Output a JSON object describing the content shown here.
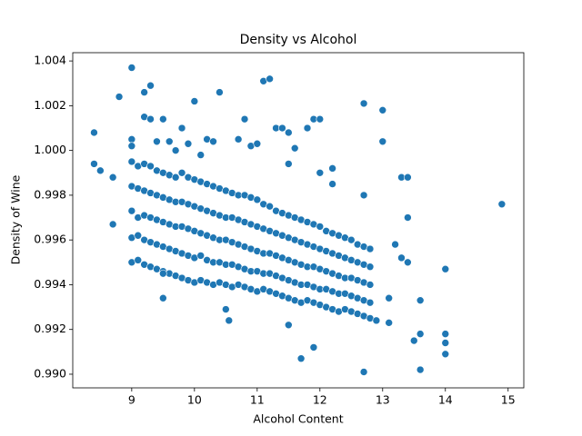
{
  "chart_data": {
    "type": "scatter",
    "title": "Density vs Alcohol",
    "x_label": "Alcohol Content",
    "y_label": "Density of Wine",
    "color": "#1f77b4",
    "xlim": [
      8.06,
      15.25
    ],
    "ylim": [
      0.98939,
      1.00437
    ],
    "xticks": [
      9,
      10,
      11,
      12,
      13,
      14,
      15
    ],
    "yticks": [
      {
        "value": 0.99,
        "label": "0.990"
      },
      0.992,
      0.994,
      0.996,
      0.998,
      {
        "value": 1.0,
        "label": "1.000"
      },
      1.002,
      1.004
    ],
    "x": [
      9,
      9,
      9,
      9,
      9,
      9.1,
      9.1,
      9.1,
      9.1,
      9.1,
      9.2,
      9.2,
      9.2,
      9.2,
      9.2,
      9.3,
      9.3,
      9.3,
      9.3,
      9.3,
      9.4,
      9.4,
      9.4,
      9.4,
      9.4,
      9.5,
      9.5,
      9.5,
      9.5,
      9.5,
      9.6,
      9.6,
      9.6,
      9.6,
      9.6,
      9.7,
      9.7,
      9.7,
      9.7,
      9.7,
      9.8,
      9.8,
      9.8,
      9.8,
      9.8,
      9.9,
      9.9,
      9.9,
      9.9,
      9.9,
      10,
      10,
      10,
      10,
      10,
      10.1,
      10.1,
      10.1,
      10.1,
      10.1,
      10.2,
      10.2,
      10.2,
      10.2,
      10.2,
      10.3,
      10.3,
      10.3,
      10.3,
      10.3,
      10.4,
      10.4,
      10.4,
      10.4,
      10.4,
      10.5,
      10.5,
      10.5,
      10.5,
      10.5,
      10.6,
      10.6,
      10.6,
      10.6,
      10.6,
      10.7,
      10.7,
      10.7,
      10.7,
      10.7,
      10.8,
      10.8,
      10.8,
      10.8,
      10.8,
      10.9,
      10.9,
      10.9,
      10.9,
      10.9,
      11,
      11,
      11,
      11,
      11,
      11.1,
      11.1,
      11.1,
      11.1,
      11.1,
      11.2,
      11.2,
      11.2,
      11.2,
      11.2,
      11.3,
      11.3,
      11.3,
      11.3,
      11.3,
      11.4,
      11.4,
      11.4,
      11.4,
      11.4,
      11.5,
      11.5,
      11.5,
      11.5,
      11.5,
      11.6,
      11.6,
      11.6,
      11.6,
      11.6,
      11.7,
      11.7,
      11.7,
      11.7,
      11.7,
      11.8,
      11.8,
      11.8,
      11.8,
      11.8,
      11.9,
      11.9,
      11.9,
      11.9,
      11.9,
      12,
      12,
      12,
      12,
      12,
      12.1,
      12.1,
      12.1,
      12.1,
      12.1,
      12.2,
      12.2,
      12.2,
      12.2,
      12.2,
      12.3,
      12.3,
      12.3,
      12.3,
      12.3,
      12.4,
      12.4,
      12.4,
      12.4,
      12.4,
      12.5,
      12.5,
      12.5,
      12.5,
      12.5,
      12.6,
      12.6,
      12.6,
      12.6,
      12.6,
      12.7,
      12.7,
      12.7,
      12.7,
      12.7,
      12.8,
      12.8,
      12.8,
      12.8,
      12.8,
      8.4,
      8.4,
      8.5,
      8.7,
      8.7,
      8.8,
      9.0,
      9.2,
      9.3,
      9.5,
      9.5,
      10.0,
      10.4,
      10.5,
      10.55,
      11.1,
      11.2,
      11.7,
      11.9,
      11.5,
      12.7,
      12.7,
      13.0,
      13.0,
      13.6,
      14.0,
      14.0,
      14.9,
      13.6,
      13.5,
      13.6,
      14.0,
      14.0,
      13.3,
      13.4,
      13.4,
      13.2,
      13.3,
      13.4,
      12.9,
      13.1,
      13.1,
      11.8,
      11.9,
      12.0,
      11.3,
      11.4,
      10.8,
      9.8,
      9.5,
      9.2,
      9.3,
      12.2,
      12.7,
      12.0,
      12.2,
      11.5,
      11.5,
      9.0,
      9.0,
      9.4,
      9.6,
      9.9,
      10.2,
      10.3,
      10.7,
      10.9,
      11.0,
      11.6,
      10.1,
      9.7
    ],
    "values": [
      0.995,
      0.9961,
      0.9973,
      0.9984,
      0.9995,
      0.9951,
      0.9962,
      0.997,
      0.9983,
      0.9993,
      0.9949,
      0.996,
      0.9971,
      0.9982,
      0.9994,
      0.9948,
      0.9959,
      0.997,
      0.9981,
      0.9993,
      0.9947,
      0.9958,
      0.9969,
      0.998,
      0.9991,
      0.9946,
      0.9957,
      0.9968,
      0.9979,
      0.999,
      0.9945,
      0.9956,
      0.9967,
      0.9978,
      0.9989,
      0.9944,
      0.9955,
      0.9966,
      0.9977,
      0.9988,
      0.9943,
      0.9954,
      0.9966,
      0.9977,
      0.999,
      0.9942,
      0.9953,
      0.9965,
      0.9976,
      0.9988,
      0.9941,
      0.9952,
      0.9964,
      0.9975,
      0.9987,
      0.9942,
      0.9953,
      0.9963,
      0.9974,
      0.9986,
      0.9941,
      0.9951,
      0.9962,
      0.9973,
      0.9985,
      0.994,
      0.995,
      0.9961,
      0.9972,
      0.9984,
      0.9941,
      0.995,
      0.996,
      0.9971,
      0.9983,
      0.994,
      0.9949,
      0.996,
      0.997,
      0.9982,
      0.9939,
      0.9949,
      0.9959,
      0.997,
      0.9981,
      0.994,
      0.9948,
      0.9958,
      0.9969,
      0.998,
      0.9939,
      0.9947,
      0.9957,
      0.9968,
      0.998,
      0.9938,
      0.9946,
      0.9956,
      0.9967,
      0.9979,
      0.9937,
      0.9946,
      0.9955,
      0.9966,
      0.9978,
      0.9938,
      0.9945,
      0.9954,
      0.9965,
      0.9976,
      0.9937,
      0.9945,
      0.9954,
      0.9964,
      0.9975,
      0.9936,
      0.9944,
      0.9953,
      0.9963,
      0.9973,
      0.9935,
      0.9943,
      0.9952,
      0.9962,
      0.9972,
      0.9934,
      0.9942,
      0.9951,
      0.9961,
      0.9971,
      0.9933,
      0.9941,
      0.995,
      0.996,
      0.997,
      0.9932,
      0.994,
      0.9949,
      0.9959,
      0.9969,
      0.9933,
      0.994,
      0.9948,
      0.9958,
      0.9968,
      0.9932,
      0.9939,
      0.9948,
      0.9957,
      0.9967,
      0.9931,
      0.9938,
      0.9947,
      0.9956,
      0.9966,
      0.993,
      0.9938,
      0.9946,
      0.9955,
      0.9964,
      0.9929,
      0.9937,
      0.9945,
      0.9954,
      0.9963,
      0.9928,
      0.9936,
      0.9944,
      0.9953,
      0.9962,
      0.9929,
      0.9936,
      0.9943,
      0.9952,
      0.9961,
      0.9928,
      0.9935,
      0.9943,
      0.9951,
      0.996,
      0.9927,
      0.9934,
      0.9942,
      0.995,
      0.9958,
      0.9926,
      0.9933,
      0.9941,
      0.9949,
      0.9957,
      0.9925,
      0.9932,
      0.994,
      0.9948,
      0.9956,
      1.0008,
      0.9994,
      0.9991,
      0.9988,
      0.9967,
      1.0024,
      1.0037,
      1.0026,
      1.0029,
      0.9934,
      0.9945,
      1.0022,
      1.0026,
      0.9929,
      0.9924,
      1.0031,
      1.0032,
      0.9907,
      0.9912,
      0.9922,
      0.9901,
      1.0021,
      1.0018,
      1.0004,
      0.9902,
      0.9909,
      0.9947,
      0.9976,
      0.9933,
      0.9915,
      0.9918,
      0.9918,
      0.9914,
      0.9988,
      0.9988,
      0.997,
      0.9958,
      0.9952,
      0.995,
      0.9924,
      0.9923,
      0.9934,
      1.001,
      1.0014,
      1.0014,
      1.001,
      1.001,
      1.0014,
      1.001,
      1.0014,
      1.0015,
      1.0014,
      0.9985,
      0.998,
      0.999,
      0.9992,
      0.9994,
      1.0008,
      1.0005,
      1.0002,
      1.0004,
      1.0004,
      1.0003,
      1.0005,
      1.0004,
      1.0005,
      1.0002,
      1.0003,
      1.0001,
      0.9998,
      1.0
    ]
  }
}
